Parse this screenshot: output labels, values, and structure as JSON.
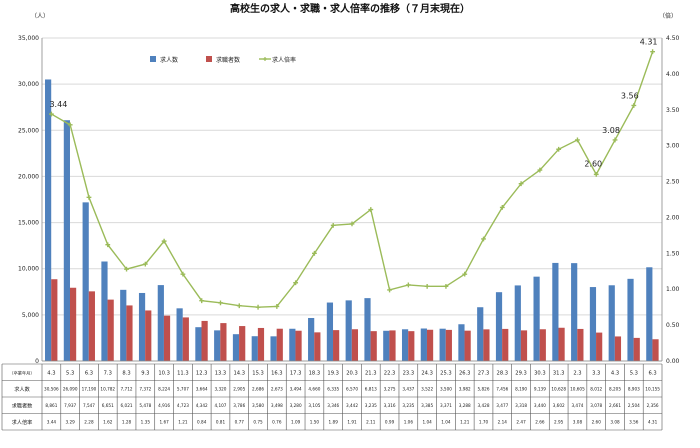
{
  "chart_data": {
    "type": "bar",
    "title": "高校生の求人・求職・求人倍率の推移（７月末現在）",
    "left_unit": "（人）",
    "right_unit": "（倍）",
    "ylim_left": [
      0,
      35000
    ],
    "ylim_right": [
      0,
      4.5
    ],
    "left_ticks": [
      "0",
      "5,000",
      "10,000",
      "15,000",
      "20,000",
      "25,000",
      "30,000",
      "35,000"
    ],
    "right_ticks": [
      "0.00",
      "0.50",
      "1.00",
      "1.50",
      "2.00",
      "2.50",
      "3.00",
      "3.50",
      "4.00",
      "4.50"
    ],
    "legend_position": "top-left",
    "grid": true,
    "table_head_label": "（卒業年月）",
    "categories": [
      "4.3",
      "5.3",
      "6.3",
      "7.3",
      "8.3",
      "9.3",
      "10.3",
      "11.3",
      "12.3",
      "13.3",
      "14.3",
      "15.3",
      "16.3",
      "17.3",
      "18.3",
      "19.3",
      "20.3",
      "21.3",
      "22.3",
      "23.3",
      "24.3",
      "25.3",
      "26.3",
      "27.3",
      "28.3",
      "29.3",
      "30.3",
      "31.3",
      "2.3",
      "3.3",
      "4.3",
      "5.3",
      "6.3"
    ],
    "series": [
      {
        "name": "求人数",
        "axis": "left",
        "kind": "bar",
        "color": "#4f81bd",
        "values": [
          30506,
          26090,
          17190,
          10782,
          7712,
          7372,
          8224,
          5707,
          3664,
          3320,
          2905,
          2686,
          2673,
          3494,
          4660,
          6335,
          6570,
          6813,
          3275,
          3437,
          3522,
          3500,
          3982,
          5826,
          7456,
          8190,
          9139,
          10628,
          10605,
          8012,
          8205,
          8903,
          10155
        ],
        "labels": [
          "30,506",
          "26,090",
          "17,190",
          "10,782",
          "7,712",
          "7,372",
          "8,224",
          "5,707",
          "3,664",
          "3,320",
          "2,905",
          "2,686",
          "2,673",
          "3,494",
          "4,660",
          "6,335",
          "6,570",
          "6,813",
          "3,275",
          "3,437",
          "3,522",
          "3,500",
          "3,982",
          "5,826",
          "7,456",
          "8,190",
          "9,139",
          "10,628",
          "10,605",
          "8,012",
          "8,205",
          "8,903",
          "10,155"
        ]
      },
      {
        "name": "求職者数",
        "axis": "left",
        "kind": "bar",
        "color": "#c0504d",
        "values": [
          8861,
          7937,
          7547,
          6651,
          6021,
          5478,
          4916,
          4723,
          4342,
          4107,
          3786,
          3580,
          3498,
          3280,
          3105,
          3346,
          3442,
          3235,
          3316,
          3235,
          3385,
          3371,
          3288,
          3428,
          3477,
          3318,
          3440,
          3602,
          3474,
          3078,
          2661,
          2504,
          2356
        ],
        "labels": [
          "8,861",
          "7,937",
          "7,547",
          "6,651",
          "6,021",
          "5,478",
          "4,916",
          "4,723",
          "4,342",
          "4,107",
          "3,786",
          "3,580",
          "3,498",
          "3,280",
          "3,105",
          "3,346",
          "3,442",
          "3,235",
          "3,316",
          "3,235",
          "3,385",
          "3,371",
          "3,288",
          "3,428",
          "3,477",
          "3,318",
          "3,440",
          "3,602",
          "3,474",
          "3,078",
          "2,661",
          "2,504",
          "2,356"
        ]
      },
      {
        "name": "求人倍率",
        "axis": "right",
        "kind": "line",
        "color": "#9bbb59",
        "values": [
          3.44,
          3.29,
          2.28,
          1.62,
          1.28,
          1.35,
          1.67,
          1.21,
          0.84,
          0.81,
          0.77,
          0.75,
          0.76,
          1.09,
          1.5,
          1.89,
          1.91,
          2.11,
          0.99,
          1.06,
          1.04,
          1.04,
          1.21,
          1.7,
          2.14,
          2.47,
          2.66,
          2.95,
          3.08,
          2.6,
          3.08,
          3.56,
          4.31
        ],
        "labels": [
          "3.44",
          "3.29",
          "2.28",
          "1.62",
          "1.28",
          "1.35",
          "1.67",
          "1.21",
          "0.84",
          "0.81",
          "0.77",
          "0.75",
          "0.76",
          "1.09",
          "1.50",
          "1.89",
          "1.91",
          "2.11",
          "0.99",
          "1.06",
          "1.04",
          "1.04",
          "1.21",
          "1.70",
          "2.14",
          "2.47",
          "2.66",
          "2.95",
          "3.08",
          "2.60",
          "3.08",
          "3.56",
          "4.31"
        ]
      }
    ],
    "annotations": [
      {
        "index": 0,
        "text": "3.44"
      },
      {
        "index": 29,
        "text": "2.60"
      },
      {
        "index": 30,
        "text": "3.08"
      },
      {
        "index": 31,
        "text": "3.56"
      },
      {
        "index": 32,
        "text": "4.31"
      }
    ]
  }
}
